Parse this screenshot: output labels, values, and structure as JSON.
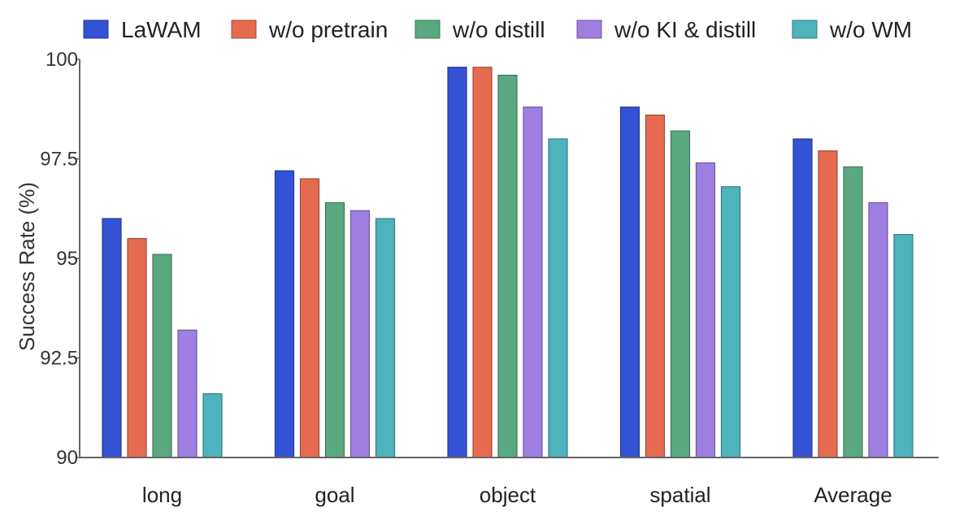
{
  "chart_data": {
    "type": "bar",
    "title": "",
    "xlabel": "",
    "ylabel": "Success Rate (%)",
    "ylim": [
      90,
      100
    ],
    "yticks": [
      {
        "value": 90,
        "label": "90"
      },
      {
        "value": 92.5,
        "label": "92.5"
      },
      {
        "value": 95,
        "label": "95"
      },
      {
        "value": 97.5,
        "label": "97.5"
      },
      {
        "value": 100,
        "label": "100"
      }
    ],
    "categories": [
      "long",
      "goal",
      "object",
      "spatial",
      "Average"
    ],
    "series": [
      {
        "name": "LaWAM",
        "color": "#3352D4",
        "values": [
          96.0,
          97.2,
          99.8,
          98.8,
          98.0
        ]
      },
      {
        "name": "w/o pretrain",
        "color": "#E56B50",
        "values": [
          95.5,
          97.0,
          99.8,
          98.6,
          97.7
        ]
      },
      {
        "name": "w/o distill",
        "color": "#5AA880",
        "values": [
          95.1,
          96.4,
          99.6,
          98.2,
          97.3
        ]
      },
      {
        "name": "w/o KI & distill",
        "color": "#9E7EE0",
        "values": [
          93.2,
          96.2,
          98.8,
          97.4,
          96.4
        ]
      },
      {
        "name": "w/o WM",
        "color": "#4DB3BD",
        "values": [
          91.6,
          96.0,
          98.0,
          96.8,
          95.6
        ]
      }
    ],
    "grid": false,
    "legend_position": "top"
  }
}
